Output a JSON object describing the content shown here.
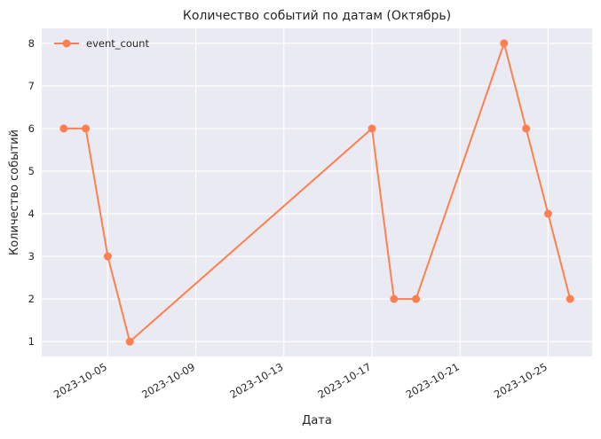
{
  "chart_data": {
    "type": "line",
    "title": "Количество событий по датам (Октябрь)",
    "xlabel": "Дата",
    "ylabel": "Количество событий",
    "x_tick_labels": [
      "2023-10-05",
      "2023-10-09",
      "2023-10-13",
      "2023-10-17",
      "2023-10-21",
      "2023-10-25"
    ],
    "x_tick_dates": [
      "2023-10-05",
      "2023-10-09",
      "2023-10-13",
      "2023-10-17",
      "2023-10-21",
      "2023-10-25"
    ],
    "xlim": [
      "2023-10-02",
      "2023-10-27"
    ],
    "y_ticks": [
      1,
      2,
      3,
      4,
      5,
      6,
      7,
      8
    ],
    "ylim": [
      0.65,
      8.35
    ],
    "grid": true,
    "legend_position": "top-left",
    "series": [
      {
        "name": "event_count",
        "color": "#ff7f50",
        "marker": "circle",
        "points": [
          {
            "x": "2023-10-03",
            "y": 6
          },
          {
            "x": "2023-10-04",
            "y": 6
          },
          {
            "x": "2023-10-05",
            "y": 3
          },
          {
            "x": "2023-10-06",
            "y": 1
          },
          {
            "x": "2023-10-17",
            "y": 6
          },
          {
            "x": "2023-10-18",
            "y": 2
          },
          {
            "x": "2023-10-19",
            "y": 2
          },
          {
            "x": "2023-10-23",
            "y": 8
          },
          {
            "x": "2023-10-24",
            "y": 6
          },
          {
            "x": "2023-10-25",
            "y": 4
          },
          {
            "x": "2023-10-26",
            "y": 2
          }
        ]
      }
    ]
  },
  "colors": {
    "plot_background": "#eaeaf2",
    "grid": "#ffffff",
    "text": "#262626"
  }
}
